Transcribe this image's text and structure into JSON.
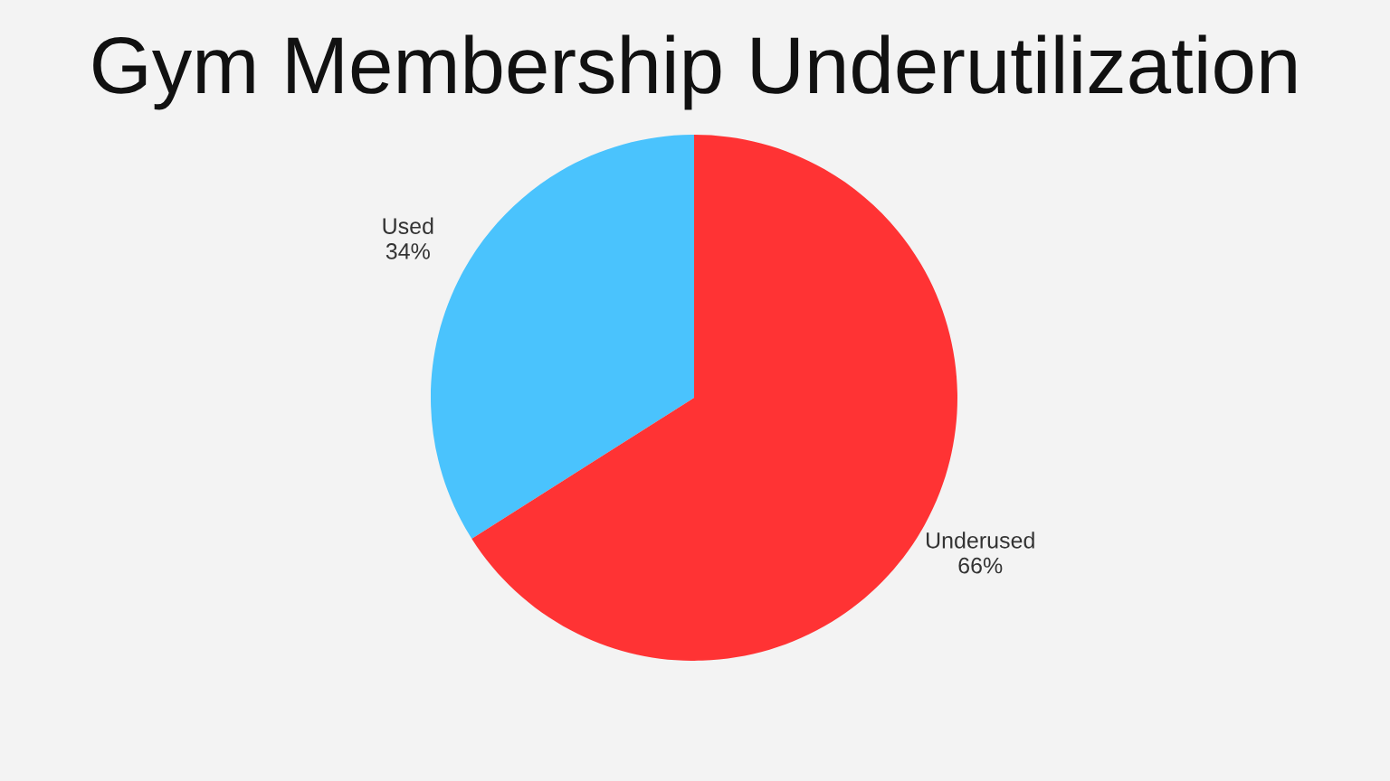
{
  "chart_data": {
    "type": "pie",
    "title": "Gym Membership Underutilization",
    "categories": [
      "Used",
      "Underused"
    ],
    "values": [
      34,
      66
    ],
    "colors": [
      "#4ac3fd",
      "#ff3334"
    ],
    "value_labels": [
      "34%",
      "66%"
    ]
  }
}
